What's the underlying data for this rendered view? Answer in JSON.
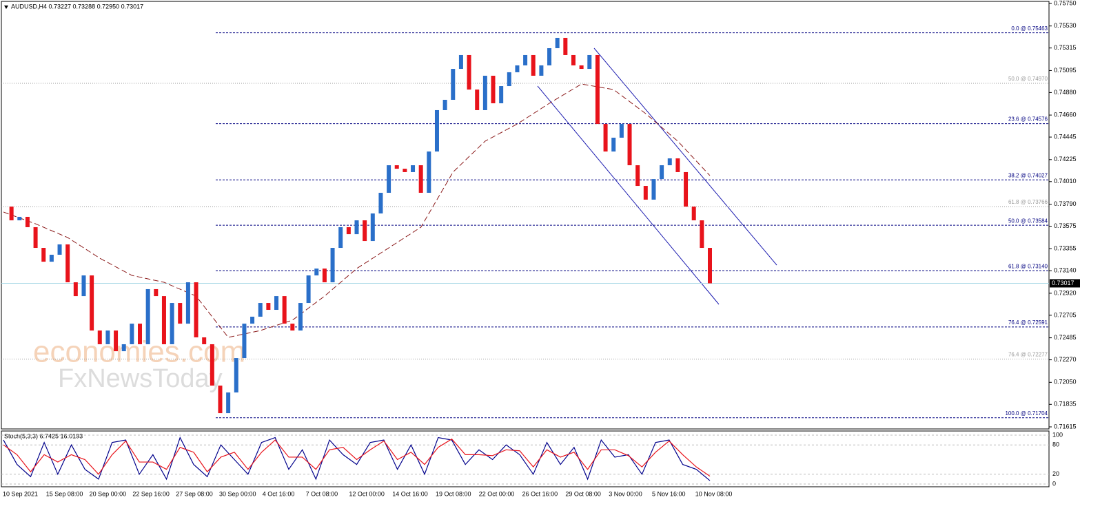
{
  "chart_data": {
    "type": "candlestick",
    "title": "AUDUSD,H4 0.73227 0.73288 0.72950 0.73017",
    "colors": {
      "up": "#2a6fc9",
      "down": "#e8131b"
    },
    "close": [
      0.73766,
      0.73632,
      0.73666,
      0.73565,
      0.73363,
      0.73228,
      0.73296,
      0.73397,
      0.73027,
      0.72892,
      0.73094,
      0.72556,
      0.72422,
      0.72556,
      0.72354,
      0.72422,
      0.72623,
      0.72422,
      0.7296,
      0.72892,
      0.72422,
      0.72825,
      0.72623,
      0.73027,
      0.72489,
      0.72422,
      0.72018,
      0.71749,
      0.71951,
      0.72287,
      0.72623,
      0.72691,
      0.72825,
      0.72758,
      0.72892,
      0.72623,
      0.72556,
      0.72825,
      0.73094,
      0.73161,
      0.73027,
      0.73363,
      0.73565,
      0.73497,
      0.73632,
      0.7343,
      0.73699,
      0.73901,
      0.7417,
      0.74136,
      0.74103,
      0.7417,
      0.73901,
      0.74304,
      0.74708,
      0.74809,
      0.75111,
      0.75246,
      0.74909,
      0.74708,
      0.75044,
      0.74775,
      0.74943,
      0.75078,
      0.75145,
      0.75246,
      0.75044,
      0.75145,
      0.75313,
      0.75414,
      0.75246,
      0.75145,
      0.75111,
      0.75246,
      0.74573,
      0.74304,
      0.74439,
      0.74573,
      0.7417,
      0.73968,
      0.73834,
      0.74035,
      0.7417,
      0.74237,
      0.74103,
      0.73766,
      0.73632,
      0.73363,
      0.73017
    ],
    "ylim": [
      0.71615,
      0.7575
    ],
    "yticks": [
      {
        "value": 0.7575,
        "label": "0.75750"
      },
      {
        "value": 0.7553,
        "label": "0.75530"
      },
      0.75315,
      0.75095,
      {
        "value": 0.7488,
        "label": "0.74880"
      },
      {
        "value": 0.7466,
        "label": "0.74660"
      },
      0.74445,
      0.74225,
      {
        "value": 0.7401,
        "label": "0.74010"
      },
      {
        "value": 0.7379,
        "label": "0.73790"
      },
      0.73575,
      0.73355,
      {
        "value": 0.7314,
        "label": "0.73140"
      },
      {
        "value": 0.7292,
        "label": "0.72920"
      },
      0.72705,
      0.72485,
      {
        "value": 0.7227,
        "label": "0.72270"
      },
      {
        "value": 0.7205,
        "label": "0.72050"
      },
      0.71835,
      0.71615
    ],
    "x_labels": [
      "10 Sep 2021",
      "15 Sep 08:00",
      "20 Sep 00:00",
      "22 Sep 16:00",
      "27 Sep 08:00",
      "30 Sep 00:00",
      "4 Oct 16:00",
      "7 Oct 08:00",
      "12 Oct 00:00",
      "14 Oct 16:00",
      "19 Oct 08:00",
      "22 Oct 00:00",
      "26 Oct 16:00",
      "29 Oct 08:00",
      "3 Nov 00:00",
      "5 Nov 16:00",
      "10 Nov 08:00"
    ],
    "last_price": 0.73017,
    "fib_levels": [
      {
        "label": "0.0 @ 0.75463",
        "value": 0.75463,
        "color": "#000080",
        "line": "dashed"
      },
      {
        "label": "50.0 @ 0.74970",
        "value": 0.7497,
        "color": "#999999",
        "line": "dotted"
      },
      {
        "label": "23.6 @ 0.74576",
        "value": 0.74576,
        "color": "#000080",
        "line": "dashed"
      },
      {
        "label": "38.2 @ 0.74027",
        "value": 0.74027,
        "color": "#000080",
        "line": "dashed"
      },
      {
        "label": "61.8 @ 0.73766",
        "value": 0.73766,
        "color": "#999999",
        "line": "dotted"
      },
      {
        "label": "50.0 @ 0.73584",
        "value": 0.73584,
        "color": "#000080",
        "line": "dashed"
      },
      {
        "label": "61.8 @ 0.73140",
        "value": 0.7314,
        "color": "#000080",
        "line": "dashed"
      },
      {
        "label": "76.4 @ 0.72591",
        "value": 0.72591,
        "color": "#000080",
        "line": "dashed"
      },
      {
        "label": "76.4 @ 0.72277",
        "value": 0.72277,
        "color": "#999999",
        "line": "dotted"
      },
      {
        "label": "100.0 @ 0.71704",
        "value": 0.71704,
        "color": "#000080",
        "line": "dashed"
      }
    ],
    "moving_average": {
      "color": "#8b1a1a",
      "values": [
        0.73713,
        0.73598,
        0.73464,
        0.73262,
        0.73094,
        0.73027,
        0.72892,
        0.72489,
        0.72556,
        0.72657,
        0.72892,
        0.73161,
        0.73363,
        0.73565,
        0.74103,
        0.74405,
        0.74573,
        0.74775,
        0.74963,
        0.74909,
        0.74674,
        0.74405,
        0.74069
      ]
    },
    "watermark": [
      "economies.com",
      "FxNewsToday"
    ],
    "stochastic": {
      "title": "Stoch(5,3,3) 6.7425 16.0193",
      "ylim": [
        0,
        100
      ],
      "yticks": [
        0,
        20,
        80,
        100
      ],
      "series": [
        {
          "color": "#00008b",
          "values": [
            90,
            40,
            15,
            85,
            20,
            80,
            30,
            10,
            85,
            90,
            20,
            60,
            10,
            95,
            40,
            15,
            80,
            50,
            20,
            85,
            95,
            30,
            70,
            10,
            90,
            60,
            40,
            85,
            90,
            30,
            80,
            20,
            95,
            90,
            40,
            70,
            50,
            80,
            60,
            20,
            85,
            40,
            75,
            10,
            90,
            55,
            60,
            20,
            85,
            90,
            40,
            30,
            7
          ]
        },
        {
          "color": "#e8131b",
          "values": [
            80,
            60,
            25,
            60,
            45,
            60,
            50,
            20,
            60,
            88,
            45,
            45,
            30,
            75,
            65,
            25,
            55,
            65,
            30,
            65,
            90,
            55,
            55,
            30,
            70,
            75,
            50,
            70,
            88,
            50,
            65,
            40,
            75,
            92,
            60,
            60,
            58,
            70,
            68,
            35,
            70,
            55,
            65,
            30,
            70,
            70,
            58,
            35,
            65,
            88,
            60,
            35,
            16
          ]
        }
      ]
    }
  }
}
